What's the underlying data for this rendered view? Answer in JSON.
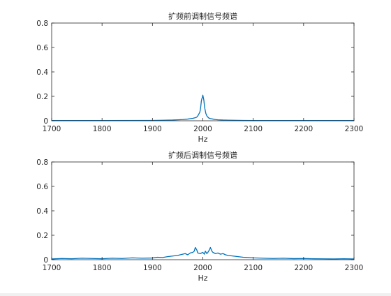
{
  "figure": {
    "background": "#ffffff",
    "line_color": "#0072bd",
    "axes_color": "#262626"
  },
  "chart_data": [
    {
      "type": "line",
      "title": "扩频前调制信号频谱",
      "xlabel": "Hz",
      "ylabel": "",
      "xlim": [
        1700,
        2300
      ],
      "ylim": [
        0,
        0.8
      ],
      "xticks": [
        1700,
        1800,
        1900,
        2000,
        2100,
        2200,
        2300
      ],
      "yticks": [
        0,
        0.2,
        0.4,
        0.6,
        0.8
      ],
      "xtick_labels": [
        "1700",
        "1800",
        "1900",
        "2000",
        "2100",
        "2200",
        "2300"
      ],
      "ytick_labels": [
        "0",
        "0.2",
        "0.4",
        "0.6",
        "0.8"
      ],
      "grid": false,
      "series": [
        {
          "color": "#0072bd",
          "x": [
            1700,
            1800,
            1900,
            1920,
            1940,
            1950,
            1960,
            1970,
            1975,
            1980,
            1985,
            1988,
            1990,
            1992,
            1994,
            1995,
            1996,
            1997,
            1998,
            1999,
            2000,
            2001,
            2002,
            2003,
            2004,
            2005,
            2006,
            2008,
            2010,
            2012,
            2015,
            2020,
            2025,
            2030,
            2040,
            2050,
            2060,
            2080,
            2100,
            2200,
            2300
          ],
          "y": [
            0.002,
            0.002,
            0.003,
            0.004,
            0.006,
            0.008,
            0.01,
            0.014,
            0.017,
            0.02,
            0.025,
            0.03,
            0.04,
            0.055,
            0.07,
            0.09,
            0.12,
            0.16,
            0.18,
            0.19,
            0.21,
            0.19,
            0.17,
            0.13,
            0.1,
            0.08,
            0.06,
            0.04,
            0.03,
            0.022,
            0.018,
            0.014,
            0.01,
            0.008,
            0.006,
            0.005,
            0.004,
            0.003,
            0.002,
            0.002,
            0.002
          ]
        }
      ]
    },
    {
      "type": "line",
      "title": "扩频后调制信号频谱",
      "xlabel": "Hz",
      "ylabel": "",
      "xlim": [
        1700,
        2300
      ],
      "ylim": [
        0,
        0.8
      ],
      "xticks": [
        1700,
        1800,
        1900,
        2000,
        2100,
        2200,
        2300
      ],
      "yticks": [
        0,
        0.2,
        0.4,
        0.6,
        0.8
      ],
      "xtick_labels": [
        "1700",
        "1800",
        "1900",
        "2000",
        "2100",
        "2200",
        "2300"
      ],
      "ytick_labels": [
        "0",
        "0.2",
        "0.4",
        "0.6",
        "0.8"
      ],
      "grid": false,
      "series": [
        {
          "color": "#0072bd",
          "x": [
            1700,
            1720,
            1740,
            1760,
            1780,
            1800,
            1820,
            1840,
            1860,
            1880,
            1900,
            1910,
            1920,
            1930,
            1940,
            1950,
            1955,
            1960,
            1965,
            1970,
            1975,
            1980,
            1983,
            1985,
            1988,
            1990,
            1995,
            2000,
            2003,
            2005,
            2008,
            2010,
            2013,
            2015,
            2018,
            2020,
            2025,
            2030,
            2035,
            2040,
            2045,
            2050,
            2060,
            2070,
            2080,
            2090,
            2100,
            2120,
            2140,
            2160,
            2180,
            2200,
            2220,
            2240,
            2260,
            2280,
            2300
          ],
          "y": [
            0.006,
            0.01,
            0.008,
            0.012,
            0.01,
            0.008,
            0.012,
            0.01,
            0.015,
            0.012,
            0.014,
            0.02,
            0.018,
            0.025,
            0.03,
            0.035,
            0.04,
            0.045,
            0.05,
            0.04,
            0.055,
            0.06,
            0.07,
            0.1,
            0.08,
            0.055,
            0.05,
            0.06,
            0.045,
            0.07,
            0.05,
            0.06,
            0.08,
            0.1,
            0.07,
            0.06,
            0.05,
            0.055,
            0.045,
            0.05,
            0.04,
            0.035,
            0.03,
            0.025,
            0.02,
            0.018,
            0.015,
            0.012,
            0.01,
            0.012,
            0.009,
            0.01,
            0.008,
            0.007,
            0.006,
            0.008,
            0.006
          ]
        }
      ]
    }
  ]
}
